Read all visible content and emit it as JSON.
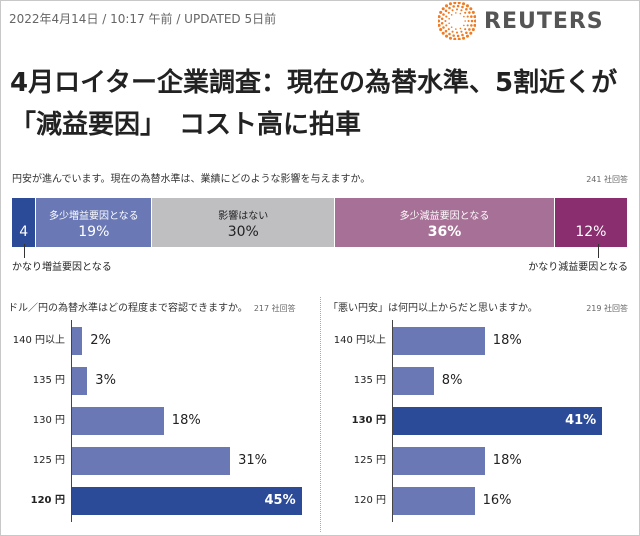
{
  "header": {
    "meta": "2022年4月14日 / 10:17 午前 / UPDATED 5日前",
    "logo": "REUTERS",
    "title": "4月ロイター企業調査：現在の為替水準、5割近くが「減益要因」　コスト高に拍車"
  },
  "colors": {
    "dark_blue": "#2b4a98",
    "mid_blue": "#6a79b6",
    "gray": "#bfbfc2",
    "mauve": "#a77197",
    "plum": "#8a2e6f",
    "orange": "#f07b22"
  },
  "chart_data": [
    {
      "type": "bar",
      "stacked": true,
      "title": "円安が進んでいます。現在の為替水準は、業績にどのような影響を与えますか。",
      "n": "241 社回答",
      "categories": [
        "かなり増益要因となる",
        "多少増益要因となる",
        "影響はない",
        "多少減益要因となる",
        "かなり減益要因となる"
      ],
      "values": [
        4,
        19,
        30,
        36,
        12
      ],
      "labels": [
        "4",
        "19%",
        "30%",
        "36%",
        "12%"
      ]
    },
    {
      "type": "bar",
      "orientation": "horizontal",
      "title": "ドル／円の為替水準はどの程度まで容認できますか。",
      "n": "217 社回答",
      "categories": [
        "140 円以上",
        "135 円",
        "130 円",
        "125 円",
        "120 円"
      ],
      "values": [
        2,
        3,
        18,
        31,
        45
      ],
      "labels": [
        "2%",
        "3%",
        "18%",
        "31%",
        "45%"
      ],
      "highlight": 4
    },
    {
      "type": "bar",
      "orientation": "horizontal",
      "title": "「悪い円安」は何円以上からだと思いますか。",
      "n": "219 社回答",
      "categories": [
        "140 円以上",
        "135 円",
        "130 円",
        "125 円",
        "120 円"
      ],
      "values": [
        18,
        8,
        41,
        18,
        16
      ],
      "labels": [
        "18%",
        "8%",
        "41%",
        "18%",
        "16%"
      ],
      "highlight": 2
    }
  ]
}
